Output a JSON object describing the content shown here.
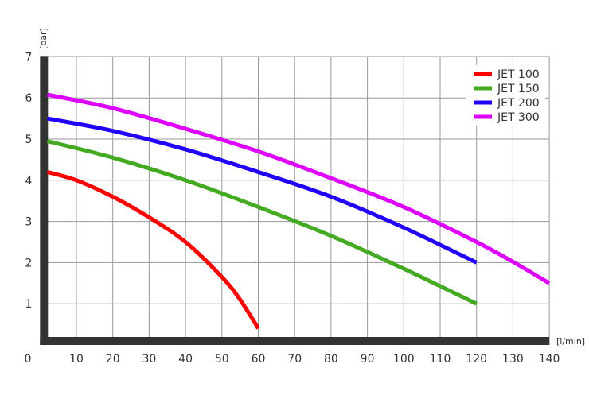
{
  "chart_data": {
    "type": "line",
    "title": "",
    "xlabel": "[l/min]",
    "ylabel": "[bar]",
    "xlim": [
      0,
      140
    ],
    "ylim": [
      0,
      7
    ],
    "x_ticks": [
      0,
      10,
      20,
      30,
      40,
      50,
      60,
      70,
      80,
      90,
      100,
      110,
      120,
      130,
      140
    ],
    "y_ticks": [
      1,
      2,
      3,
      4,
      5,
      6,
      7
    ],
    "grid": true,
    "legend_position": "top-right",
    "series": [
      {
        "name": "JET 100",
        "color": "#ff0000",
        "x": [
          2,
          10,
          20,
          30,
          40,
          50,
          55,
          60
        ],
        "y": [
          4.2,
          4.0,
          3.6,
          3.1,
          2.5,
          1.65,
          1.1,
          0.4
        ]
      },
      {
        "name": "JET 150",
        "color": "#44aa22",
        "x": [
          2,
          20,
          40,
          60,
          80,
          100,
          120
        ],
        "y": [
          4.95,
          4.55,
          4.0,
          3.35,
          2.65,
          1.85,
          1.0
        ]
      },
      {
        "name": "JET 200",
        "color": "#2200ff",
        "x": [
          2,
          20,
          40,
          60,
          80,
          100,
          120
        ],
        "y": [
          5.5,
          5.2,
          4.75,
          4.2,
          3.6,
          2.85,
          2.0
        ]
      },
      {
        "name": "JET 300",
        "color": "#dd00ff",
        "x": [
          2,
          20,
          40,
          60,
          80,
          100,
          120,
          130,
          140
        ],
        "y": [
          6.08,
          5.75,
          5.25,
          4.7,
          4.05,
          3.35,
          2.5,
          2.02,
          1.5
        ]
      }
    ]
  }
}
